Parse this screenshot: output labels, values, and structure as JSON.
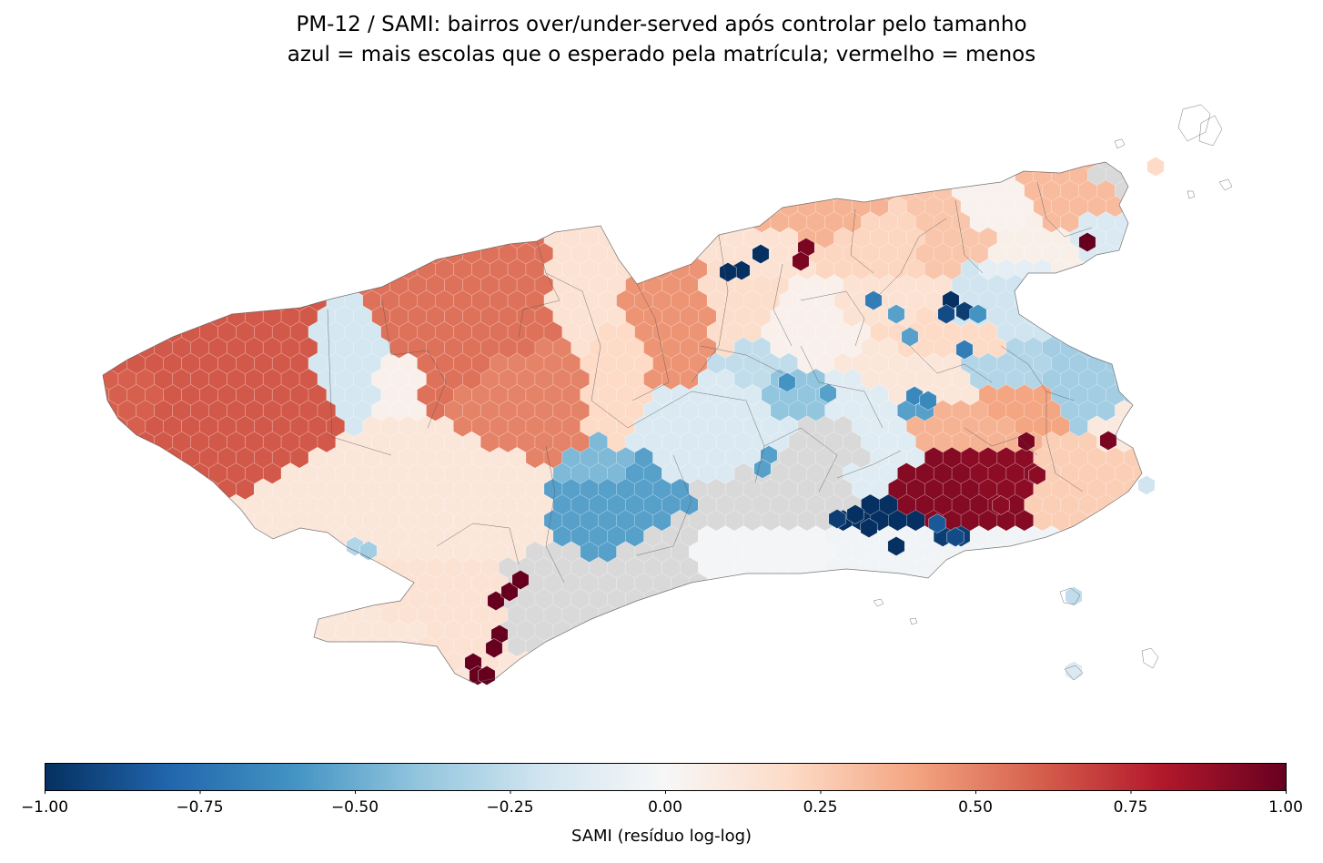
{
  "title": {
    "line1": "PM-12 / SAMI: bairros over/under-served após controlar pelo tamanho",
    "line2": "azul = mais escolas que o esperado pela matrícula; vermelho = menos"
  },
  "colorbar": {
    "label": "SAMI (resíduo log-log)",
    "colormap": "RdBu_r",
    "min": -1.0,
    "max": 1.0,
    "ticks": [
      "−1.00",
      "−0.75",
      "−0.50",
      "−0.25",
      "0.00",
      "0.25",
      "0.50",
      "0.75",
      "1.00"
    ],
    "tick_values": [
      -1.0,
      -0.75,
      -0.5,
      -0.25,
      0.0,
      0.25,
      0.5,
      0.75,
      1.0
    ],
    "stops": [
      "#053061",
      "#2166ac",
      "#4393c3",
      "#92c5de",
      "#d1e5f0",
      "#f7f7f7",
      "#fddbc7",
      "#f4a582",
      "#d6604d",
      "#b2182b",
      "#67001f"
    ]
  },
  "map": {
    "no_data_color": "#d9d9d9",
    "boundary_color": "#555555"
  }
}
